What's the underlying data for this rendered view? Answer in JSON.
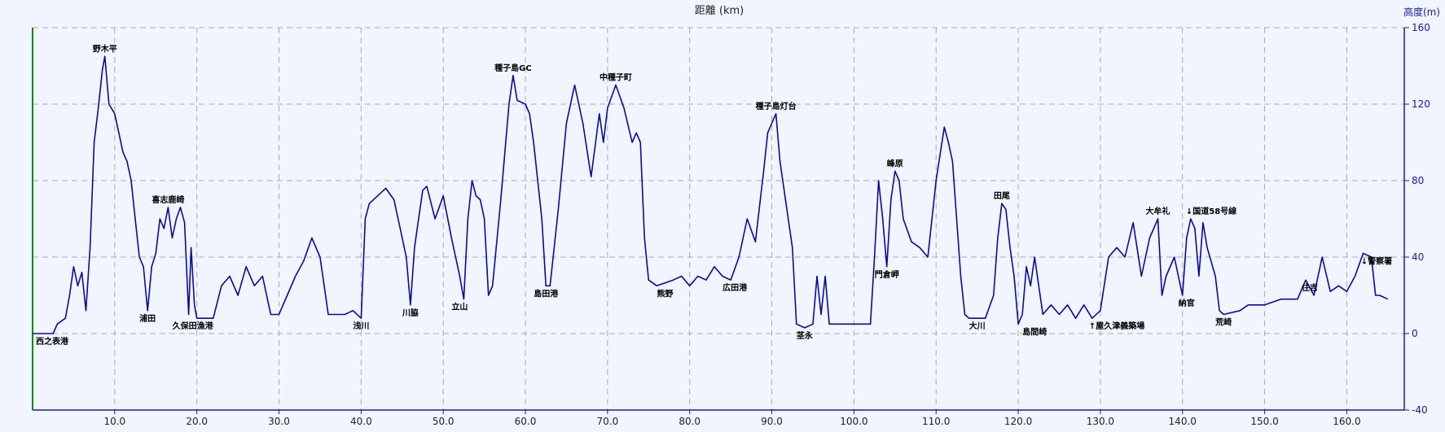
{
  "chart_data": {
    "type": "line",
    "title": "距離 (km)",
    "ylabel": "高度(m)",
    "xlim": [
      0,
      167
    ],
    "ylim": [
      -40,
      160
    ],
    "x_ticks": [
      10.0,
      20.0,
      30.0,
      40.0,
      50.0,
      60.0,
      70.0,
      80.0,
      90.0,
      100.0,
      110.0,
      120.0,
      130.0,
      140.0,
      150.0,
      160.0
    ],
    "x_tick_labels": [
      "10.0",
      "20.0",
      "30.0",
      "40.0",
      "50.0",
      "60.0",
      "70.0",
      "80.0",
      "90.0",
      "100.0",
      "110.0",
      "120.0",
      "130.0",
      "140.0",
      "150.0",
      "160.0"
    ],
    "y_ticks": [
      160,
      120,
      80,
      40,
      0,
      -40
    ],
    "y_tick_labels": [
      "160",
      "120",
      "80",
      "40",
      "0",
      "-40"
    ],
    "grid": true,
    "series": [
      {
        "color": "#0a0a9c",
        "points": [
          [
            0.0,
            0
          ],
          [
            2.5,
            0
          ],
          [
            3.0,
            5
          ],
          [
            4.0,
            8
          ],
          [
            4.5,
            20
          ],
          [
            5.0,
            35
          ],
          [
            5.5,
            25
          ],
          [
            6.0,
            32
          ],
          [
            6.5,
            12
          ],
          [
            7.0,
            45
          ],
          [
            7.5,
            100
          ],
          [
            8.0,
            118
          ],
          [
            8.5,
            138
          ],
          [
            8.8,
            145
          ],
          [
            9.3,
            120
          ],
          [
            10.0,
            115
          ],
          [
            10.5,
            105
          ],
          [
            11.0,
            95
          ],
          [
            11.5,
            90
          ],
          [
            12.0,
            80
          ],
          [
            12.5,
            60
          ],
          [
            13.0,
            40
          ],
          [
            13.5,
            35
          ],
          [
            14.0,
            12
          ],
          [
            14.5,
            35
          ],
          [
            15.0,
            42
          ],
          [
            15.5,
            60
          ],
          [
            16.0,
            55
          ],
          [
            16.5,
            66
          ],
          [
            17.0,
            50
          ],
          [
            17.5,
            60
          ],
          [
            18.0,
            66
          ],
          [
            18.5,
            58
          ],
          [
            19.0,
            10
          ],
          [
            19.3,
            45
          ],
          [
            19.7,
            15
          ],
          [
            20.0,
            8
          ],
          [
            22.0,
            8
          ],
          [
            23.0,
            25
          ],
          [
            24.0,
            30
          ],
          [
            25.0,
            20
          ],
          [
            26.0,
            35
          ],
          [
            27.0,
            25
          ],
          [
            28.0,
            30
          ],
          [
            29.0,
            10
          ],
          [
            30.0,
            10
          ],
          [
            31.0,
            20
          ],
          [
            32.0,
            30
          ],
          [
            33.0,
            38
          ],
          [
            34.0,
            50
          ],
          [
            35.0,
            40
          ],
          [
            35.5,
            25
          ],
          [
            36.0,
            10
          ],
          [
            38.0,
            10
          ],
          [
            39.0,
            12
          ],
          [
            40.0,
            8
          ],
          [
            40.5,
            60
          ],
          [
            41.0,
            68
          ],
          [
            42.0,
            72
          ],
          [
            43.0,
            76
          ],
          [
            44.0,
            70
          ],
          [
            45.0,
            50
          ],
          [
            45.5,
            40
          ],
          [
            46.0,
            15
          ],
          [
            46.5,
            45
          ],
          [
            47.0,
            60
          ],
          [
            47.5,
            75
          ],
          [
            48.0,
            77
          ],
          [
            49.0,
            60
          ],
          [
            50.0,
            72
          ],
          [
            51.0,
            50
          ],
          [
            52.0,
            30
          ],
          [
            52.5,
            18
          ],
          [
            53.0,
            60
          ],
          [
            53.5,
            80
          ],
          [
            54.0,
            72
          ],
          [
            54.5,
            70
          ],
          [
            55.0,
            60
          ],
          [
            55.5,
            20
          ],
          [
            56.0,
            25
          ],
          [
            57.0,
            70
          ],
          [
            58.0,
            120
          ],
          [
            58.5,
            135
          ],
          [
            59.0,
            122
          ],
          [
            60.0,
            120
          ],
          [
            60.5,
            115
          ],
          [
            61.0,
            100
          ],
          [
            62.0,
            60
          ],
          [
            62.5,
            25
          ],
          [
            63.0,
            25
          ],
          [
            64.0,
            65
          ],
          [
            65.0,
            110
          ],
          [
            66.0,
            130
          ],
          [
            67.0,
            110
          ],
          [
            68.0,
            82
          ],
          [
            69.0,
            115
          ],
          [
            69.5,
            100
          ],
          [
            70.0,
            118
          ],
          [
            71.0,
            130
          ],
          [
            72.0,
            118
          ],
          [
            73.0,
            100
          ],
          [
            73.5,
            105
          ],
          [
            74.0,
            100
          ],
          [
            74.5,
            50
          ],
          [
            75.0,
            28
          ],
          [
            76.0,
            25
          ],
          [
            78.0,
            28
          ],
          [
            79.0,
            30
          ],
          [
            80.0,
            25
          ],
          [
            81.0,
            30
          ],
          [
            82.0,
            28
          ],
          [
            83.0,
            35
          ],
          [
            84.0,
            30
          ],
          [
            85.0,
            28
          ],
          [
            86.0,
            40
          ],
          [
            87.0,
            60
          ],
          [
            88.0,
            48
          ],
          [
            89.0,
            85
          ],
          [
            89.5,
            105
          ],
          [
            90.0,
            110
          ],
          [
            90.5,
            115
          ],
          [
            91.0,
            90
          ],
          [
            92.0,
            60
          ],
          [
            92.5,
            45
          ],
          [
            93.0,
            5
          ],
          [
            94.0,
            3
          ],
          [
            95.0,
            5
          ],
          [
            95.5,
            30
          ],
          [
            96.0,
            10
          ],
          [
            96.5,
            30
          ],
          [
            97.0,
            5
          ],
          [
            100.0,
            5
          ],
          [
            102.0,
            5
          ],
          [
            102.5,
            40
          ],
          [
            103.0,
            80
          ],
          [
            103.5,
            60
          ],
          [
            104.0,
            35
          ],
          [
            104.5,
            70
          ],
          [
            105.0,
            85
          ],
          [
            105.5,
            80
          ],
          [
            106.0,
            60
          ],
          [
            107.0,
            48
          ],
          [
            108.0,
            45
          ],
          [
            109.0,
            40
          ],
          [
            110.0,
            80
          ],
          [
            111.0,
            108
          ],
          [
            111.5,
            100
          ],
          [
            112.0,
            90
          ],
          [
            113.0,
            30
          ],
          [
            113.5,
            10
          ],
          [
            114.0,
            8
          ],
          [
            116.0,
            8
          ],
          [
            117.0,
            20
          ],
          [
            117.5,
            50
          ],
          [
            118.0,
            68
          ],
          [
            118.5,
            65
          ],
          [
            119.0,
            45
          ],
          [
            119.5,
            30
          ],
          [
            120.0,
            5
          ],
          [
            120.5,
            10
          ],
          [
            121.0,
            35
          ],
          [
            121.5,
            25
          ],
          [
            122.0,
            40
          ],
          [
            123.0,
            10
          ],
          [
            124.0,
            15
          ],
          [
            125.0,
            10
          ],
          [
            126.0,
            15
          ],
          [
            127.0,
            8
          ],
          [
            128.0,
            15
          ],
          [
            129.0,
            8
          ],
          [
            130.0,
            12
          ],
          [
            131.0,
            40
          ],
          [
            132.0,
            45
          ],
          [
            133.0,
            40
          ],
          [
            134.0,
            58
          ],
          [
            135.0,
            30
          ],
          [
            136.0,
            50
          ],
          [
            137.0,
            60
          ],
          [
            137.5,
            20
          ],
          [
            138.0,
            30
          ],
          [
            139.0,
            40
          ],
          [
            140.0,
            20
          ],
          [
            140.5,
            50
          ],
          [
            141.0,
            60
          ],
          [
            141.5,
            55
          ],
          [
            142.0,
            30
          ],
          [
            142.5,
            58
          ],
          [
            143.0,
            45
          ],
          [
            144.0,
            30
          ],
          [
            144.5,
            12
          ],
          [
            145.0,
            10
          ],
          [
            147.0,
            12
          ],
          [
            148.0,
            15
          ],
          [
            150.0,
            15
          ],
          [
            152.0,
            18
          ],
          [
            154.0,
            18
          ],
          [
            155.0,
            28
          ],
          [
            156.0,
            20
          ],
          [
            157.0,
            40
          ],
          [
            158.0,
            22
          ],
          [
            159.0,
            25
          ],
          [
            160.0,
            22
          ],
          [
            161.0,
            30
          ],
          [
            162.0,
            42
          ],
          [
            163.0,
            40
          ],
          [
            163.5,
            20
          ],
          [
            164.0,
            20
          ],
          [
            165.0,
            18
          ]
        ]
      }
    ],
    "annotations": [
      {
        "text": "西之表港",
        "x": 0.0,
        "y": 0
      },
      {
        "text": "野木平",
        "x": 8.8,
        "y": 145
      },
      {
        "text": "浦田",
        "x": 14.0,
        "y": 12
      },
      {
        "text": "喜志鹿崎",
        "x": 16.5,
        "y": 66
      },
      {
        "text": "久保田漁港",
        "x": 19.5,
        "y": 8
      },
      {
        "text": "浅川",
        "x": 40.0,
        "y": 8
      },
      {
        "text": "川脇",
        "x": 46.0,
        "y": 15
      },
      {
        "text": "立山",
        "x": 52.0,
        "y": 18
      },
      {
        "text": "種子島GC",
        "x": 58.5,
        "y": 135
      },
      {
        "text": "島田港",
        "x": 62.5,
        "y": 25
      },
      {
        "text": "中種子町",
        "x": 71.0,
        "y": 130
      },
      {
        "text": "熊野",
        "x": 77.0,
        "y": 25
      },
      {
        "text": "広田港",
        "x": 85.5,
        "y": 28
      },
      {
        "text": "種子島灯台",
        "x": 90.5,
        "y": 115
      },
      {
        "text": "茎永",
        "x": 94.0,
        "y": 3
      },
      {
        "text": "峰原",
        "x": 105.0,
        "y": 85
      },
      {
        "text": "門倉岬",
        "x": 104.0,
        "y": 35
      },
      {
        "text": "大川",
        "x": 115.0,
        "y": 8
      },
      {
        "text": "田尾",
        "x": 118.0,
        "y": 68
      },
      {
        "text": "島間崎",
        "x": 122.0,
        "y": 5
      },
      {
        "text": "↑屋久津義築場",
        "x": 132.0,
        "y": 8
      },
      {
        "text": "大牟礼",
        "x": 137.0,
        "y": 60
      },
      {
        "text": "↓国道58号線",
        "x": 143.5,
        "y": 60
      },
      {
        "text": "納官",
        "x": 140.5,
        "y": 20
      },
      {
        "text": "荒崎",
        "x": 145.0,
        "y": 10
      },
      {
        "text": "住吉",
        "x": 155.5,
        "y": 28
      },
      {
        "text": "↓警察署",
        "x": 164.5,
        "y": 42
      }
    ]
  }
}
